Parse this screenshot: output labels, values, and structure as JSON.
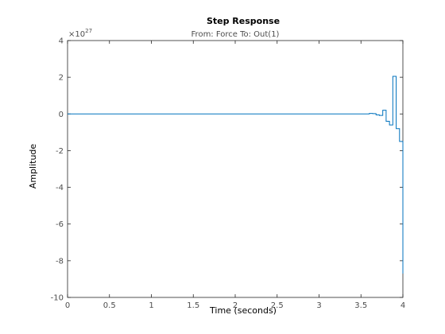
{
  "chart_data": {
    "type": "line",
    "title": "Step Response",
    "subtitle": "From: Force  To: Out(1)",
    "xlabel": "Time (seconds)",
    "ylabel": "Amplitude",
    "xlim": [
      0,
      4
    ],
    "ylim": [
      -10,
      4
    ],
    "y_exponent_base": "10",
    "y_exponent_power": "27",
    "x_ticks": [
      "0",
      "0.5",
      "1",
      "1.5",
      "2",
      "2.5",
      "3",
      "3.5",
      "4"
    ],
    "y_ticks": [
      "4",
      "2",
      "0",
      "-2",
      "-4",
      "-6",
      "-8",
      "-10"
    ],
    "grid": false,
    "series": [
      {
        "color": "#0072bd",
        "step": true,
        "x": [
          0,
          3.6,
          3.64,
          3.68,
          3.72,
          3.76,
          3.8,
          3.84,
          3.88,
          3.92,
          3.96,
          4.0
        ],
        "y": [
          0,
          0.03,
          0.02,
          -0.05,
          -0.08,
          0.2,
          -0.4,
          -0.6,
          2.05,
          -0.8,
          -1.5,
          -8.7
        ]
      }
    ]
  }
}
